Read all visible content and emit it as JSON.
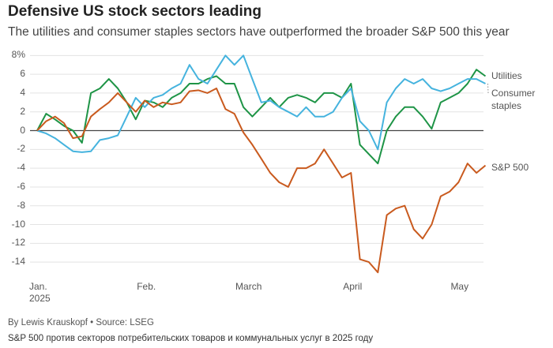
{
  "chart_data": {
    "type": "line",
    "title": "Defensive US stock sectors leading",
    "subtitle": "The utilities and consumer staples sectors have outperformed the broader S&P 500 this year",
    "byline": "By Lewis Krauskopf • Source: LSEG",
    "caption": "S&P 500 против секторов потребительских товаров и коммунальных услуг в 2025 году",
    "categories": [
      "Jan. 2025",
      null,
      null,
      null,
      null,
      null,
      null,
      null,
      null,
      null,
      null,
      null,
      "Feb.",
      null,
      null,
      null,
      null,
      null,
      null,
      null,
      null,
      null,
      null,
      "March",
      null,
      null,
      null,
      null,
      null,
      null,
      null,
      null,
      null,
      null,
      null,
      "April",
      null,
      null,
      null,
      null,
      null,
      null,
      null,
      null,
      null,
      null,
      null,
      "May",
      null,
      null,
      null
    ],
    "series": [
      {
        "name": "Utilities",
        "color": "#1e9446",
        "values": [
          0,
          1.8,
          1.2,
          0.5,
          0,
          -1.3,
          4.0,
          4.5,
          5.5,
          4.5,
          3.0,
          1.2,
          3.2,
          3.0,
          2.5,
          3.5,
          4.0,
          5.0,
          5.0,
          5.5,
          5.8,
          5.0,
          5.0,
          2.5,
          1.5,
          2.5,
          3.5,
          2.5,
          3.5,
          3.8,
          3.5,
          3.0,
          4.0,
          4.0,
          3.5,
          5.0,
          -1.5,
          -2.5,
          -3.5,
          0.0,
          1.5,
          2.5,
          2.5,
          1.5,
          0.2,
          3.0,
          3.5,
          4.0,
          5.0,
          6.5,
          5.8
        ]
      },
      {
        "name": "Consumer staples",
        "color": "#45b3de",
        "values": [
          0,
          -0.3,
          -0.8,
          -1.5,
          -2.2,
          -2.3,
          -2.2,
          -1.0,
          -0.8,
          -0.5,
          1.5,
          3.5,
          2.5,
          3.5,
          3.8,
          4.5,
          5.0,
          7.0,
          5.5,
          5.0,
          6.5,
          8.0,
          7.0,
          8.0,
          5.5,
          3.0,
          3.2,
          2.5,
          2.0,
          1.5,
          2.5,
          1.5,
          1.5,
          2.0,
          3.5,
          4.5,
          1.0,
          0.0,
          -2.0,
          3.0,
          4.5,
          5.5,
          5.0,
          5.5,
          4.5,
          4.2,
          4.5,
          5.0,
          5.5,
          5.5,
          5.0
        ]
      },
      {
        "name": "S&P 500",
        "color": "#c95a1e",
        "values": [
          0,
          1.0,
          1.5,
          0.8,
          -0.8,
          -0.6,
          1.5,
          2.3,
          3.0,
          4.0,
          3.0,
          2.0,
          3.2,
          2.5,
          3.0,
          2.8,
          3.0,
          4.2,
          4.3,
          4.0,
          4.5,
          2.3,
          1.8,
          -0.2,
          -1.5,
          -3.0,
          -4.5,
          -5.5,
          -6.0,
          -4.0,
          -4.0,
          -3.5,
          -2.0,
          -3.5,
          -5.0,
          -4.5,
          -13.7,
          -14.0,
          -15.1,
          -9.0,
          -8.3,
          -8.0,
          -10.5,
          -11.5,
          -10.0,
          -7.0,
          -6.5,
          -5.5,
          -3.5,
          -4.5,
          -3.7
        ]
      }
    ],
    "ylim": [
      -15.5,
      8.7
    ],
    "yticks": [
      {
        "value": 8,
        "label": "8%"
      },
      6,
      4,
      2,
      0,
      -2,
      -4,
      -6,
      -8,
      -10,
      -12,
      -14
    ],
    "grid": true
  }
}
